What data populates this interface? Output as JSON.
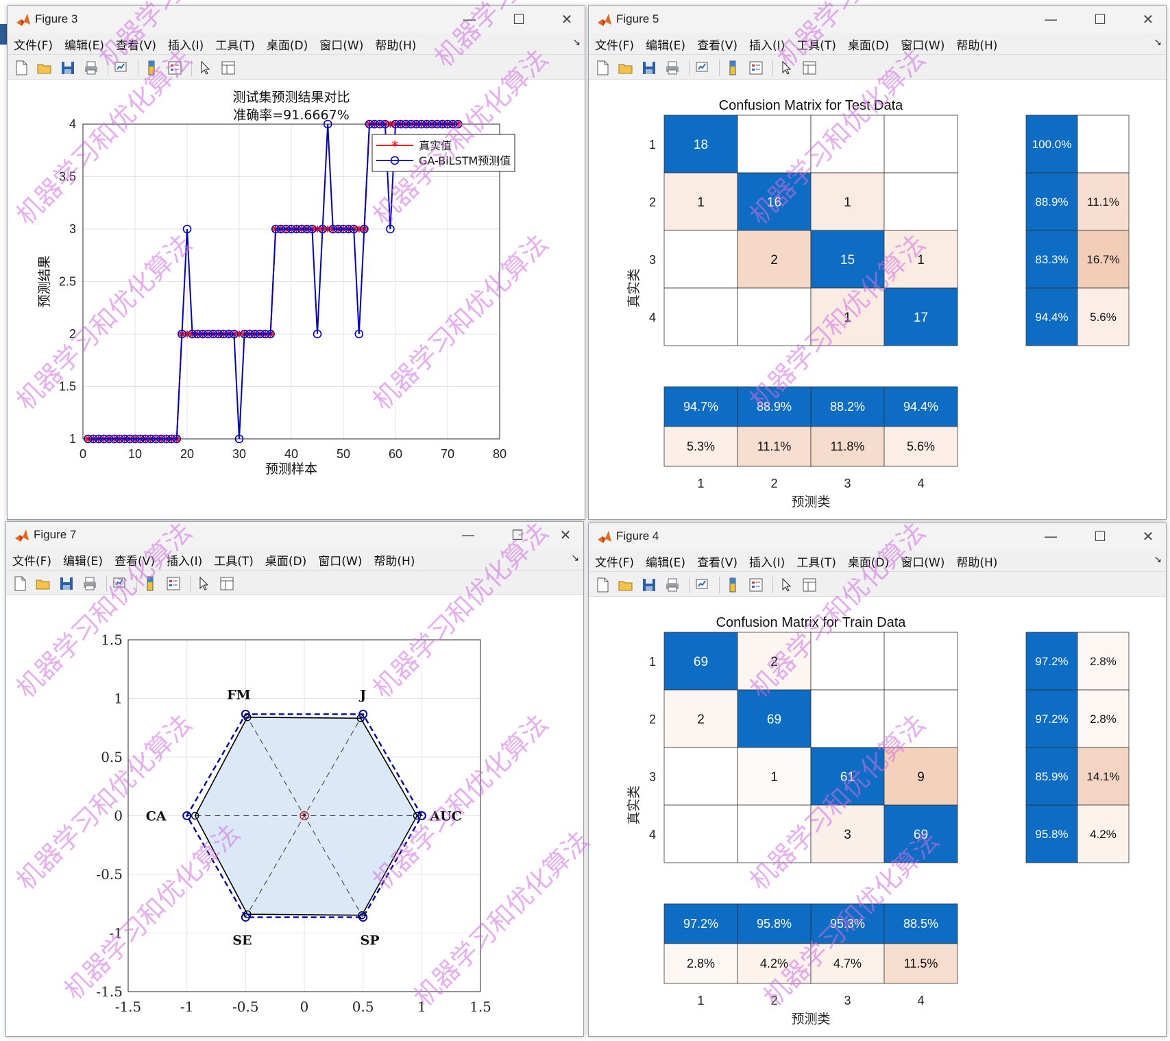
{
  "menus": [
    "文件(F)",
    "编辑(E)",
    "查看(V)",
    "插入(I)",
    "工具(T)",
    "桌面(D)",
    "窗口(W)",
    "帮助(H)"
  ],
  "controls": {
    "minimize": "—",
    "maximize": "☐",
    "close": "✕",
    "menu_arrow": "↘"
  },
  "watermark": "机器学习和优化算法",
  "windows": {
    "fig3": {
      "title": "Figure 3",
      "chart_data": {
        "type": "line",
        "title": "测试集预测结果对比",
        "subtitle": "准确率=91.6667%",
        "xlabel": "预测样本",
        "ylabel": "预测结果",
        "xlim": [
          0,
          80
        ],
        "ylim": [
          1,
          4
        ],
        "xticks": [
          "0",
          "10",
          "20",
          "30",
          "40",
          "50",
          "60",
          "70",
          "80"
        ],
        "yticks": [
          "1",
          "1.5",
          "2",
          "2.5",
          "3",
          "3.5",
          "4"
        ],
        "grid": true,
        "legend_position": "top-right",
        "series": [
          {
            "name": "真实值",
            "color": "#ff0000",
            "marker": "star",
            "values": [
              1,
              1,
              1,
              1,
              1,
              1,
              1,
              1,
              1,
              1,
              1,
              1,
              1,
              1,
              1,
              1,
              1,
              1,
              2,
              2,
              2,
              2,
              2,
              2,
              2,
              2,
              2,
              2,
              2,
              2,
              2,
              2,
              2,
              2,
              2,
              2,
              3,
              3,
              3,
              3,
              3,
              3,
              3,
              3,
              3,
              3,
              3,
              3,
              3,
              3,
              3,
              3,
              3,
              3,
              4,
              4,
              4,
              4,
              4,
              4,
              4,
              4,
              4,
              4,
              4,
              4,
              4,
              4,
              4,
              4,
              4,
              4
            ]
          },
          {
            "name": "GA-BiLSTM预测值",
            "color": "#0000cc",
            "marker": "circle",
            "values": [
              1,
              1,
              1,
              1,
              1,
              1,
              1,
              1,
              1,
              1,
              1,
              1,
              1,
              1,
              1,
              1,
              1,
              1,
              2,
              3,
              2,
              2,
              2,
              2,
              2,
              2,
              2,
              2,
              2,
              1,
              2,
              2,
              2,
              2,
              2,
              2,
              3,
              3,
              3,
              3,
              3,
              3,
              3,
              3,
              2,
              3,
              4,
              3,
              3,
              3,
              3,
              3,
              2,
              3,
              4,
              4,
              4,
              4,
              3,
              4,
              4,
              4,
              4,
              4,
              4,
              4,
              4,
              4,
              4,
              4,
              4,
              4
            ]
          }
        ]
      }
    },
    "fig5": {
      "title": "Figure 5",
      "chart_data": {
        "type": "heatmap",
        "title": "Confusion Matrix for Test Data",
        "xlabel": "预测类",
        "ylabel": "真实类",
        "classes": [
          "1",
          "2",
          "3",
          "4"
        ],
        "matrix": [
          [
            18,
            0,
            0,
            0
          ],
          [
            1,
            16,
            1,
            0
          ],
          [
            0,
            2,
            15,
            1
          ],
          [
            0,
            0,
            1,
            17
          ]
        ],
        "row_summary": [
          [
            "100.0%",
            ""
          ],
          [
            "88.9%",
            "11.1%"
          ],
          [
            "83.3%",
            "16.7%"
          ],
          [
            "94.4%",
            "5.6%"
          ]
        ],
        "col_summary": [
          [
            "94.7%",
            "88.9%",
            "88.2%",
            "94.4%"
          ],
          [
            "5.3%",
            "11.1%",
            "11.8%",
            "5.6%"
          ]
        ]
      }
    },
    "fig7": {
      "title": "Figure 7",
      "chart_data": {
        "type": "radar",
        "axes": [
          "AUC",
          "J",
          "FM",
          "CA",
          "SE",
          "SP"
        ],
        "xlim": [
          -1.5,
          1.5
        ],
        "ylim": [
          -1.5,
          1.5
        ],
        "xticks": [
          "-1.5",
          "-1",
          "-0.5",
          "0",
          "0.5",
          "1",
          "1.5"
        ],
        "yticks": [
          "1.5",
          "1",
          "0.5",
          "0",
          "-0.5",
          "-1",
          "-1.5"
        ],
        "grid": true,
        "series": [
          {
            "style": "solid",
            "color": "#000000",
            "fill": "#dbe8f7",
            "values": [
              0.96,
              0.96,
              0.97,
              0.93,
              0.97,
              0.98
            ]
          },
          {
            "style": "dashed",
            "color": "#0000aa",
            "values": [
              1.0,
              1.0,
              1.0,
              1.0,
              1.0,
              1.0
            ]
          }
        ]
      }
    },
    "fig4": {
      "title": "Figure 4",
      "chart_data": {
        "type": "heatmap",
        "title": "Confusion Matrix for Train Data",
        "xlabel": "预测类",
        "ylabel": "真实类",
        "classes": [
          "1",
          "2",
          "3",
          "4"
        ],
        "matrix": [
          [
            69,
            2,
            0,
            0
          ],
          [
            2,
            69,
            0,
            0
          ],
          [
            0,
            1,
            61,
            9
          ],
          [
            0,
            0,
            3,
            69
          ]
        ],
        "row_summary": [
          [
            "97.2%",
            "2.8%"
          ],
          [
            "97.2%",
            "2.8%"
          ],
          [
            "85.9%",
            "14.1%"
          ],
          [
            "95.8%",
            "4.2%"
          ]
        ],
        "col_summary": [
          [
            "97.2%",
            "95.8%",
            "95.3%",
            "88.5%"
          ],
          [
            "2.8%",
            "4.2%",
            "4.7%",
            "11.5%"
          ]
        ]
      }
    }
  }
}
